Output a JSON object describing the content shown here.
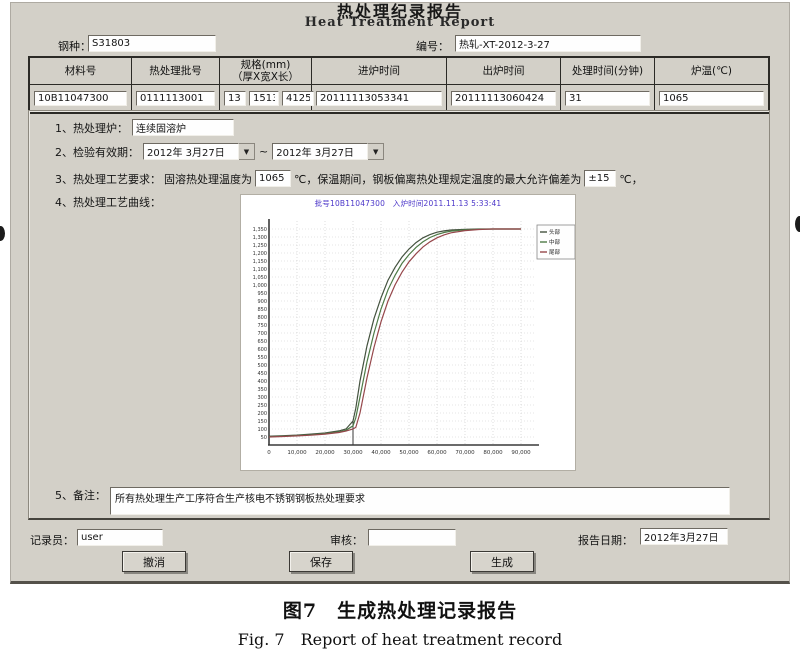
{
  "window": {
    "title_cn": "热处理纪录报告",
    "title_en": "Heat Treatment Report",
    "fields": {
      "steel_grade_label": "钢种：",
      "steel_grade_value": "S31803",
      "report_no_label": "编号：",
      "report_no_value": "热轧-XT-2012-3-27"
    }
  },
  "table": {
    "headers": [
      "材料号",
      "热处理批号",
      "规格(mm)\n（厚X宽X长）",
      "进炉时间",
      "出炉时间",
      "处理时间(分钟)",
      "炉温(℃)"
    ],
    "row": {
      "material_no": "10B11047300",
      "batch_no": "0111113001",
      "thickness": "13",
      "width": "1513",
      "length": "4125",
      "in_time": "20111113053341",
      "out_time": "20111113060424",
      "duration": "31",
      "furnace_temp": "1065"
    }
  },
  "form": {
    "item1_label": "1、热处理炉：",
    "item1_value": "连续固溶炉",
    "item2_label": "2、检验有效期：",
    "item2_from": "2012年 3月27日",
    "item2_sep": "~",
    "item2_to": "2012年 3月27日",
    "item3_label": "3、热处理工艺要求：",
    "item3_text1": "固溶热处理温度为",
    "item3_temp": "1065",
    "item3_text2": "℃，保温期间，钢板偏离热处理规定温度的最大允许偏差为",
    "item3_tol": "±15",
    "item3_text3": "℃，",
    "item4_label": "4、热处理工艺曲线：",
    "item5_label": "5、备注：",
    "item5_value": "所有热处理生产工序符合生产核电不锈钢钢板热处理要求"
  },
  "footer": {
    "recorder_label": "记录员：",
    "recorder_value": "user",
    "reviewer_label": "审核：",
    "reviewer_value": "",
    "date_label": "报告日期：",
    "date_value": "2012年3月27日",
    "undo_button": "撤消",
    "save_button": "保存",
    "generate_button": "生成"
  },
  "caption": {
    "cn": "图7　生成热处理记录报告",
    "en": "Fig. 7　Report of heat treatment record"
  },
  "icons": {
    "dropdown_arrow": "▼"
  },
  "chart_data": {
    "type": "line",
    "title": "批号10B11047300　入炉时间2011.11.13 5:33:41",
    "title_color": "#4b36c9",
    "xlabel": "",
    "ylabel": "",
    "xlim": [
      0,
      95000
    ],
    "ylim": [
      0,
      1400
    ],
    "x_ticks": [
      0,
      10000,
      20000,
      30000,
      40000,
      50000,
      60000,
      70000,
      80000,
      90000
    ],
    "y_tick_min": 50,
    "y_tick_max": 1350,
    "y_tick_step": 50,
    "grid": true,
    "grid_color": "#c9c9c9",
    "axis_color": "#3a3a3a",
    "legend_position": "top-right",
    "marker_line": {
      "x": 30000,
      "y0": 0,
      "y1": 150,
      "color": "#3a3a3a"
    },
    "x": [
      0,
      5000,
      10000,
      15000,
      20000,
      25000,
      27500,
      30000,
      31000,
      32500,
      35000,
      37500,
      40000,
      42500,
      45000,
      47500,
      50000,
      52500,
      55000,
      57500,
      60000,
      62500,
      65000,
      70000,
      75000,
      80000,
      85000,
      90000
    ],
    "series": [
      {
        "name": "头部",
        "color": "#44523f",
        "y": [
          55,
          58,
          62,
          68,
          75,
          88,
          100,
          150,
          230,
          400,
          620,
          790,
          920,
          1030,
          1110,
          1175,
          1225,
          1265,
          1295,
          1315,
          1330,
          1338,
          1344,
          1348,
          1350,
          1350,
          1350,
          1350
        ]
      },
      {
        "name": "中部",
        "color": "#4e7a46",
        "y": [
          52,
          55,
          59,
          64,
          71,
          82,
          92,
          120,
          170,
          300,
          520,
          700,
          850,
          970,
          1060,
          1135,
          1190,
          1235,
          1270,
          1297,
          1315,
          1328,
          1337,
          1345,
          1349,
          1350,
          1350,
          1350
        ]
      },
      {
        "name": "尾部",
        "color": "#96474b",
        "y": [
          50,
          53,
          57,
          61,
          68,
          78,
          87,
          100,
          110,
          200,
          420,
          610,
          770,
          900,
          1000,
          1080,
          1145,
          1195,
          1238,
          1270,
          1295,
          1313,
          1326,
          1340,
          1347,
          1350,
          1350,
          1350
        ]
      }
    ]
  }
}
